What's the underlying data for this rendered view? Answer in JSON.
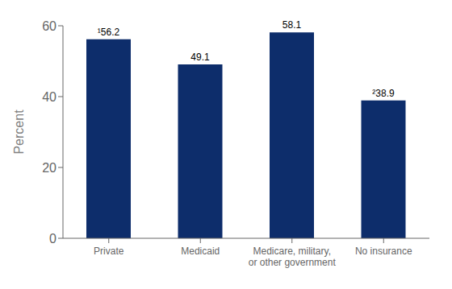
{
  "chart_data": {
    "type": "bar",
    "categories": [
      "Private",
      "Medicaid",
      "Medicare, military,\nor other government",
      "No insurance"
    ],
    "values": [
      56.2,
      49.1,
      58.1,
      38.9
    ],
    "value_labels": [
      "¹56.2",
      "49.1",
      "58.1",
      "²38.9"
    ],
    "color": "#0d2d6b",
    "ylabel": "Percent",
    "ylim": [
      0,
      60
    ],
    "yticks": [
      0,
      20,
      40,
      60
    ],
    "grid": false,
    "data_labels": true
  }
}
